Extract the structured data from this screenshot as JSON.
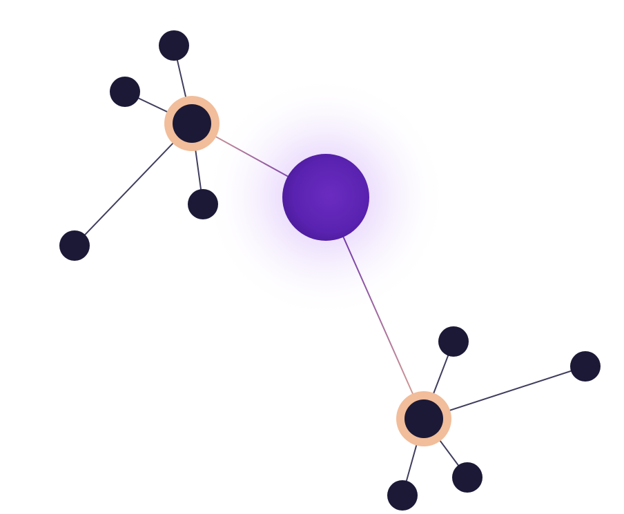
{
  "colors": {
    "background": "#ffffff",
    "leaf_node": "#1b1936",
    "hub_ring": "#f1bd9a",
    "hub_core": "#1b1936",
    "center_node": "#5a22b0",
    "center_node_light": "#7a3cd0",
    "center_glow": "#b884f5",
    "edge_leaf": "#3f3d5e",
    "edge_gradient_start": "#5a22b0",
    "edge_gradient_end": "#e0a890"
  },
  "nodes": [
    {
      "id": "center",
      "kind": "center"
    },
    {
      "id": "hub-upper-left",
      "kind": "hub"
    },
    {
      "id": "hub-lower-right",
      "kind": "hub"
    },
    {
      "id": "leaf-ul-top",
      "kind": "leaf"
    },
    {
      "id": "leaf-ul-left",
      "kind": "leaf"
    },
    {
      "id": "leaf-ul-bottom",
      "kind": "leaf"
    },
    {
      "id": "leaf-ul-far",
      "kind": "leaf"
    },
    {
      "id": "leaf-lr-top",
      "kind": "leaf"
    },
    {
      "id": "leaf-lr-right",
      "kind": "leaf"
    },
    {
      "id": "leaf-lr-bottom-right",
      "kind": "leaf"
    },
    {
      "id": "leaf-lr-bottom-left",
      "kind": "leaf"
    }
  ],
  "edges": [
    {
      "from": "center",
      "to": "hub-upper-left",
      "style": "gradient"
    },
    {
      "from": "center",
      "to": "hub-lower-right",
      "style": "gradient"
    },
    {
      "from": "hub-upper-left",
      "to": "leaf-ul-top",
      "style": "plain"
    },
    {
      "from": "hub-upper-left",
      "to": "leaf-ul-left",
      "style": "plain"
    },
    {
      "from": "hub-upper-left",
      "to": "leaf-ul-bottom",
      "style": "plain"
    },
    {
      "from": "hub-upper-left",
      "to": "leaf-ul-far",
      "style": "plain"
    },
    {
      "from": "hub-lower-right",
      "to": "leaf-lr-top",
      "style": "plain"
    },
    {
      "from": "hub-lower-right",
      "to": "leaf-lr-right",
      "style": "plain"
    },
    {
      "from": "hub-lower-right",
      "to": "leaf-lr-bottom-right",
      "style": "plain"
    },
    {
      "from": "hub-lower-right",
      "to": "leaf-lr-bottom-left",
      "style": "plain"
    }
  ]
}
